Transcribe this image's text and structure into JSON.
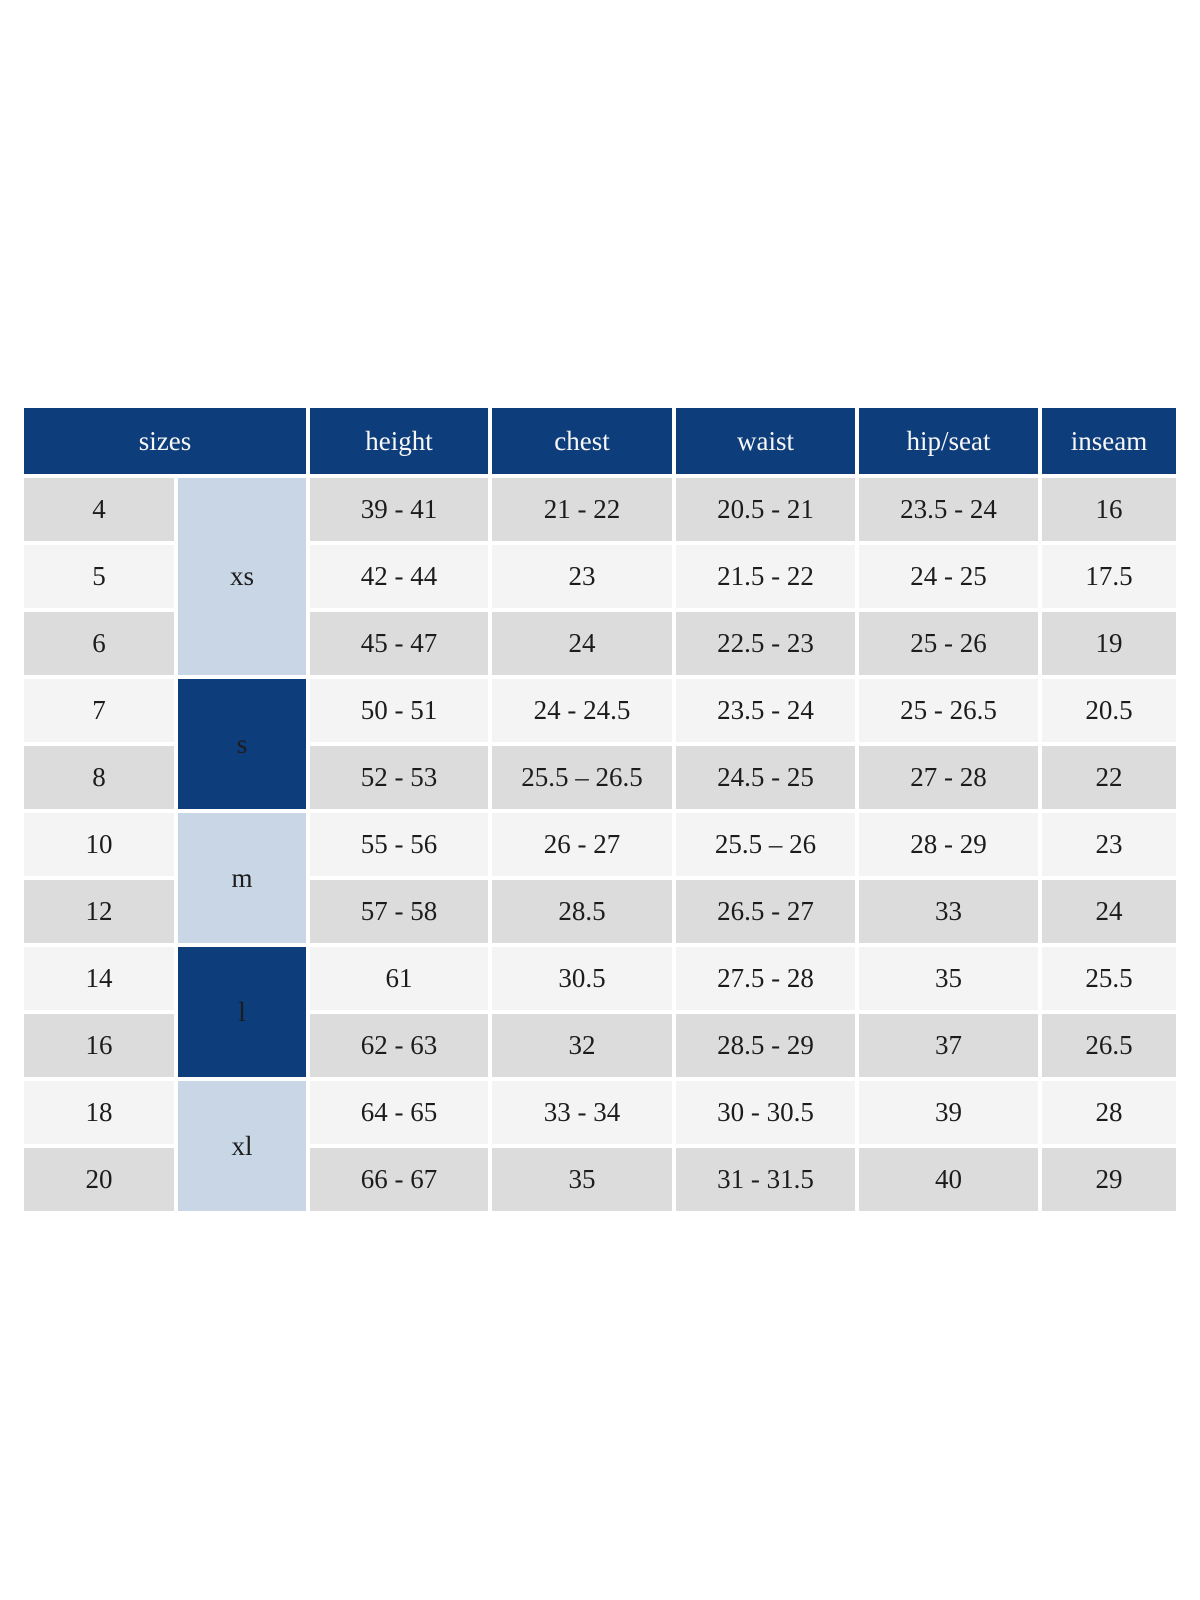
{
  "colors": {
    "header_bg": "#0e3d7b",
    "header_text": "#f7f7f7",
    "group_light_bg": "#c9d6e6",
    "row_grey": "#dcdcdc",
    "row_white": "#f4f4f4",
    "body_text": "#1c1c1c"
  },
  "chart_data": {
    "type": "table",
    "title": "",
    "header": {
      "sizes_label": "sizes",
      "measure_columns": [
        "height",
        "chest",
        "waist",
        "hip/seat",
        "inseam"
      ]
    },
    "groups": [
      {
        "label": "xs",
        "style": "light",
        "rows": [
          {
            "size": "4",
            "height": "39 - 41",
            "chest": "21 - 22",
            "waist": "20.5 - 21",
            "hip": "23.5 - 24",
            "inseam": "16"
          },
          {
            "size": "5",
            "height": "42 - 44",
            "chest": "23",
            "waist": "21.5 - 22",
            "hip": "24 - 25",
            "inseam": "17.5"
          },
          {
            "size": "6",
            "height": "45 - 47",
            "chest": "24",
            "waist": "22.5 - 23",
            "hip": "25 - 26",
            "inseam": "19"
          }
        ]
      },
      {
        "label": "s",
        "style": "dark",
        "rows": [
          {
            "size": "7",
            "height": "50 - 51",
            "chest": "24 - 24.5",
            "waist": "23.5 - 24",
            "hip": "25 - 26.5",
            "inseam": "20.5"
          },
          {
            "size": "8",
            "height": "52 - 53",
            "chest": "25.5 – 26.5",
            "waist": "24.5 - 25",
            "hip": "27 - 28",
            "inseam": "22"
          }
        ]
      },
      {
        "label": "m",
        "style": "light",
        "rows": [
          {
            "size": "10",
            "height": "55 - 56",
            "chest": "26 - 27",
            "waist": "25.5 – 26",
            "hip": "28 - 29",
            "inseam": "23"
          },
          {
            "size": "12",
            "height": "57 - 58",
            "chest": "28.5",
            "waist": "26.5 - 27",
            "hip": "33",
            "inseam": "24"
          }
        ]
      },
      {
        "label": "l",
        "style": "dark",
        "rows": [
          {
            "size": "14",
            "height": "61",
            "chest": "30.5",
            "waist": "27.5 - 28",
            "hip": "35",
            "inseam": "25.5"
          },
          {
            "size": "16",
            "height": "62 - 63",
            "chest": "32",
            "waist": "28.5 - 29",
            "hip": "37",
            "inseam": "26.5"
          }
        ]
      },
      {
        "label": "xl",
        "style": "light",
        "rows": [
          {
            "size": "18",
            "height": "64 - 65",
            "chest": "33 - 34",
            "waist": "30 - 30.5",
            "hip": "39",
            "inseam": "28"
          },
          {
            "size": "20",
            "height": "66 - 67",
            "chest": "35",
            "waist": "31 - 31.5",
            "hip": "40",
            "inseam": "29"
          }
        ]
      }
    ]
  }
}
